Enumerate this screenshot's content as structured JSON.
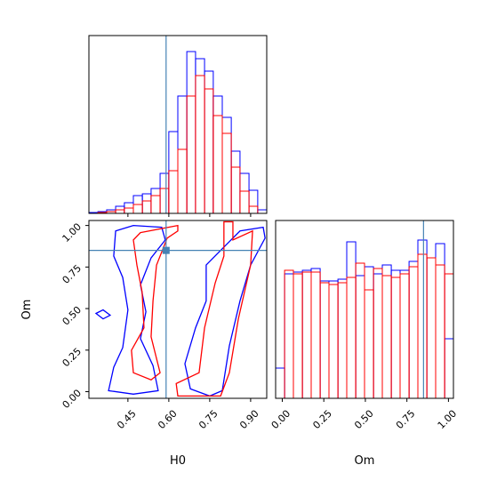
{
  "chart_data": {
    "type": "corner",
    "labels": [
      "H0",
      "Om"
    ],
    "truths": [
      0.59,
      0.85
    ],
    "truth_color": "#4682b4",
    "lims": [
      [
        0.307,
        0.959
      ],
      [
        -0.04,
        1.03
      ]
    ],
    "ticks": [
      [
        {
          "value": 0.45,
          "label": "0.45"
        },
        {
          "value": 0.6,
          "label": "0.60"
        },
        {
          "value": 0.75,
          "label": "0.75"
        },
        {
          "value": 0.9,
          "label": "0.90"
        }
      ],
      [
        {
          "value": 0,
          "label": "0.00"
        },
        {
          "value": 0.25,
          "label": "0.25"
        },
        {
          "value": 0.5,
          "label": "0.50"
        },
        {
          "value": 0.75,
          "label": "0.75"
        },
        {
          "value": 1,
          "label": "1.00"
        }
      ]
    ],
    "hist_ylim": [
      0,
      200
    ],
    "bins": [
      [
        0.307,
        0.34,
        0.372,
        0.405,
        0.437,
        0.47,
        0.503,
        0.535,
        0.568,
        0.6,
        0.633,
        0.666,
        0.698,
        0.731,
        0.763,
        0.796,
        0.829,
        0.861,
        0.894,
        0.926,
        0.959
      ],
      [
        -0.04,
        0.014,
        0.067,
        0.121,
        0.174,
        0.228,
        0.281,
        0.335,
        0.388,
        0.442,
        0.495,
        0.549,
        0.602,
        0.656,
        0.709,
        0.763,
        0.816,
        0.87,
        0.923,
        0.977,
        1.03
      ]
    ],
    "series": [
      {
        "color": "#0000ff",
        "hists": [
          [
            1,
            2,
            4,
            8,
            12,
            20,
            22,
            28,
            45,
            92,
            132,
            182,
            174,
            160,
            132,
            108,
            70,
            45,
            26,
            4
          ],
          [
            34,
            140,
            142,
            144,
            146,
            132,
            132,
            134,
            176,
            138,
            148,
            140,
            150,
            144,
            144,
            154,
            178,
            158,
            174,
            67
          ]
        ],
        "contours": [
          {
            "x": [
              0.405,
              0.47,
              0.574,
              0.587,
              0.535,
              0.496,
              0.516,
              0.496,
              0.542,
              0.561,
              0.47,
              0.379,
              0.398,
              0.431,
              0.45,
              0.431,
              0.398
            ],
            "y": [
              0.967,
              1.0,
              0.989,
              0.913,
              0.805,
              0.643,
              0.481,
              0.319,
              0.157,
              0.006,
              -0.015,
              0.006,
              0.147,
              0.265,
              0.492,
              0.687,
              0.816
            ]
          },
          {
            "x": [
              0.737,
              0.802,
              0.861,
              0.946,
              0.953,
              0.9,
              0.861,
              0.822,
              0.796,
              0.75,
              0.679,
              0.659,
              0.698,
              0.737
            ],
            "y": [
              0.762,
              0.87,
              0.967,
              0.989,
              0.924,
              0.762,
              0.546,
              0.276,
              0.006,
              -0.026,
              0.017,
              0.168,
              0.384,
              0.546
            ]
          },
          {
            "x": [
              0.333,
              0.359,
              0.385,
              0.359
            ],
            "y": [
              0.471,
              0.492,
              0.46,
              0.438
            ]
          }
        ]
      },
      {
        "color": "#ff0000",
        "hists": [
          [
            0,
            1,
            2,
            4,
            6,
            10,
            14,
            20,
            28,
            48,
            72,
            132,
            155,
            140,
            110,
            90,
            52,
            25,
            8,
            0
          ],
          [
            0,
            144,
            140,
            142,
            142,
            130,
            128,
            130,
            136,
            152,
            122,
            146,
            138,
            136,
            140,
            148,
            162,
            158,
            150,
            140
          ]
        ],
        "contours": [
          {
            "x": [
              0.496,
              0.633,
              0.633,
              0.594,
              0.555,
              0.542,
              0.535,
              0.568,
              0.535,
              0.47,
              0.463,
              0.509,
              0.502,
              0.483,
              0.47
            ],
            "y": [
              0.957,
              1.0,
              0.967,
              0.924,
              0.762,
              0.546,
              0.33,
              0.114,
              0.071,
              0.114,
              0.249,
              0.384,
              0.6,
              0.762,
              0.913
            ]
          },
          {
            "x": [
              0.802,
              0.835,
              0.835,
              0.907,
              0.9,
              0.855,
              0.822,
              0.79,
              0.633,
              0.627,
              0.711,
              0.731,
              0.77,
              0.802
            ],
            "y": [
              1.022,
              1.022,
              0.913,
              0.967,
              0.762,
              0.438,
              0.114,
              -0.026,
              -0.026,
              0.049,
              0.114,
              0.384,
              0.654,
              0.816
            ]
          }
        ]
      }
    ]
  }
}
